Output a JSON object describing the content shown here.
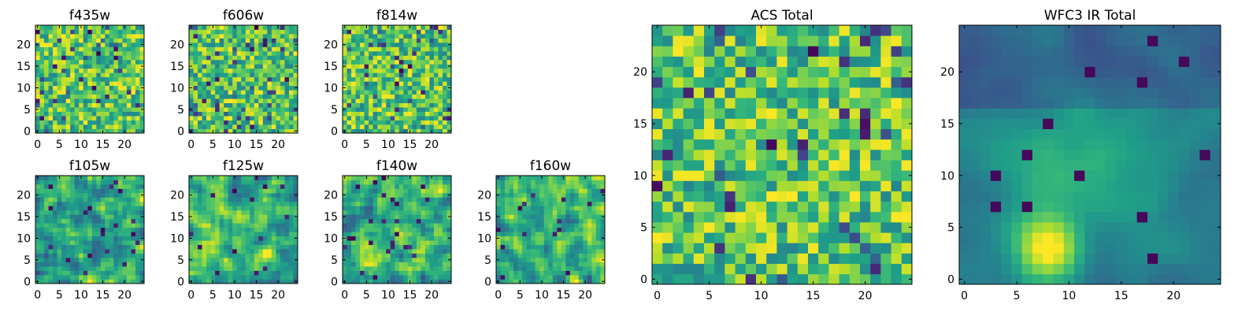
{
  "figure_title": "",
  "chart_data": [
    {
      "type": "heatmap",
      "title": "f435w",
      "grid_size": 25,
      "seed": 11,
      "colormap": "viridis",
      "mode": "noise",
      "xticks": [
        0,
        5,
        10,
        15,
        20
      ],
      "yticks": [
        0,
        5,
        10,
        15,
        20
      ],
      "xlim": [
        0,
        25
      ],
      "ylim": [
        0,
        25
      ]
    },
    {
      "type": "heatmap",
      "title": "f606w",
      "grid_size": 25,
      "seed": 23,
      "colormap": "viridis",
      "mode": "noise",
      "xticks": [
        0,
        5,
        10,
        15,
        20
      ],
      "yticks": [
        0,
        5,
        10,
        15,
        20
      ],
      "xlim": [
        0,
        25
      ],
      "ylim": [
        0,
        25
      ]
    },
    {
      "type": "heatmap",
      "title": "f814w",
      "grid_size": 25,
      "seed": 37,
      "colormap": "viridis",
      "mode": "noise",
      "xticks": [
        0,
        5,
        10,
        15,
        20
      ],
      "yticks": [
        0,
        5,
        10,
        15,
        20
      ],
      "xlim": [
        0,
        25
      ],
      "ylim": [
        0,
        25
      ]
    },
    {
      "type": "heatmap",
      "title": "f105w",
      "grid_size": 25,
      "seed": 41,
      "colormap": "viridis",
      "mode": "smooth",
      "xticks": [
        0,
        5,
        10,
        15,
        20
      ],
      "yticks": [
        0,
        5,
        10,
        15,
        20
      ],
      "xlim": [
        0,
        25
      ],
      "ylim": [
        0,
        25
      ]
    },
    {
      "type": "heatmap",
      "title": "f125w",
      "grid_size": 25,
      "seed": 53,
      "colormap": "viridis",
      "mode": "smooth",
      "xticks": [
        0,
        5,
        10,
        15,
        20
      ],
      "yticks": [
        0,
        5,
        10,
        15,
        20
      ],
      "xlim": [
        0,
        25
      ],
      "ylim": [
        0,
        25
      ]
    },
    {
      "type": "heatmap",
      "title": "f140w",
      "grid_size": 25,
      "seed": 67,
      "colormap": "viridis",
      "mode": "smooth",
      "xticks": [
        0,
        5,
        10,
        15,
        20
      ],
      "yticks": [
        0,
        5,
        10,
        15,
        20
      ],
      "xlim": [
        0,
        25
      ],
      "ylim": [
        0,
        25
      ]
    },
    {
      "type": "heatmap",
      "title": "f160w",
      "grid_size": 25,
      "seed": 79,
      "colormap": "viridis",
      "mode": "smooth",
      "xticks": [
        0,
        5,
        10,
        15,
        20
      ],
      "yticks": [
        0,
        5,
        10,
        15,
        20
      ],
      "xlim": [
        0,
        25
      ],
      "ylim": [
        0,
        25
      ]
    },
    {
      "type": "heatmap",
      "title": "ACS Total",
      "grid_size": 25,
      "seed": 97,
      "colormap": "viridis",
      "mode": "noise",
      "xticks": [
        0,
        5,
        10,
        15,
        20
      ],
      "yticks": [
        0,
        5,
        10,
        15,
        20
      ],
      "xlim": [
        0,
        25
      ],
      "ylim": [
        0,
        25
      ]
    },
    {
      "type": "heatmap",
      "title": "WFC3 IR Total",
      "grid_size": 25,
      "seed": 101,
      "colormap": "viridis",
      "mode": "blob",
      "xticks": [
        0,
        5,
        10,
        15,
        20
      ],
      "yticks": [
        0,
        5,
        10,
        15,
        20
      ],
      "xlim": [
        0,
        25
      ],
      "ylim": [
        0,
        25
      ]
    }
  ]
}
